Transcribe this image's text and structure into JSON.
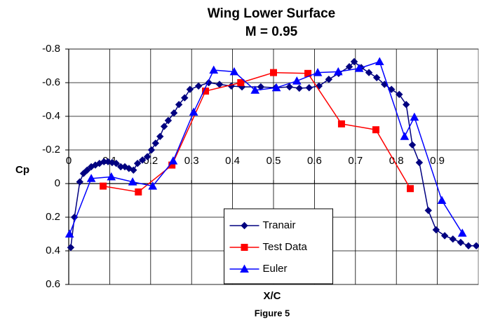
{
  "chart_data": {
    "type": "line",
    "title": "Wing Lower Surface",
    "subtitle": "M = 0.95",
    "xlabel": "X/C",
    "ylabel": "Cp",
    "caption": "Figure 5",
    "xlim": [
      0,
      1.0
    ],
    "xticks": [
      0,
      0.1,
      0.2,
      0.3,
      0.4,
      0.5,
      0.6,
      0.7,
      0.8,
      0.9
    ],
    "ylim": [
      -0.8,
      0.6
    ],
    "yticks": [
      -0.8,
      -0.6,
      -0.4,
      -0.2,
      0,
      0.2,
      0.4,
      0.6
    ],
    "y_inverted": true,
    "grid": true,
    "legend_position": "bottom-center",
    "series": [
      {
        "name": "Tranair",
        "color": "#000080",
        "marker": "diamond",
        "x": [
          0.005,
          0.014,
          0.027,
          0.036,
          0.045,
          0.055,
          0.065,
          0.075,
          0.086,
          0.096,
          0.106,
          0.116,
          0.127,
          0.137,
          0.147,
          0.158,
          0.168,
          0.18,
          0.192,
          0.202,
          0.212,
          0.223,
          0.233,
          0.243,
          0.257,
          0.269,
          0.283,
          0.296,
          0.317,
          0.342,
          0.368,
          0.397,
          0.423,
          0.469,
          0.505,
          0.539,
          0.563,
          0.587,
          0.611,
          0.635,
          0.659,
          0.685,
          0.697,
          0.714,
          0.733,
          0.752,
          0.771,
          0.788,
          0.807,
          0.824,
          0.839,
          0.856,
          0.878,
          0.897,
          0.918,
          0.938,
          0.957,
          0.976,
          0.995
        ],
        "values": [
          0.38,
          0.2,
          -0.01,
          -0.06,
          -0.08,
          -0.1,
          -0.11,
          -0.12,
          -0.13,
          -0.13,
          -0.125,
          -0.12,
          -0.1,
          -0.1,
          -0.09,
          -0.08,
          -0.12,
          -0.14,
          -0.16,
          -0.2,
          -0.24,
          -0.28,
          -0.34,
          -0.375,
          -0.42,
          -0.47,
          -0.51,
          -0.56,
          -0.58,
          -0.6,
          -0.59,
          -0.58,
          -0.575,
          -0.575,
          -0.57,
          -0.575,
          -0.567,
          -0.57,
          -0.58,
          -0.62,
          -0.655,
          -0.695,
          -0.725,
          -0.69,
          -0.66,
          -0.63,
          -0.59,
          -0.56,
          -0.53,
          -0.47,
          -0.23,
          -0.125,
          0.16,
          0.275,
          0.31,
          0.33,
          0.35,
          0.37,
          0.37
        ]
      },
      {
        "name": "Test Data",
        "color": "#ff0000",
        "marker": "square",
        "x": [
          0.084,
          0.17,
          0.252,
          0.334,
          0.42,
          0.5,
          0.584,
          0.666,
          0.75,
          0.834
        ],
        "values": [
          0.015,
          0.05,
          -0.11,
          -0.55,
          -0.6,
          -0.66,
          -0.655,
          -0.355,
          -0.32,
          0.03
        ]
      },
      {
        "name": "Euler",
        "color": "#0000ff",
        "marker": "triangle",
        "x": [
          0.002,
          0.055,
          0.104,
          0.156,
          0.205,
          0.255,
          0.305,
          0.354,
          0.404,
          0.455,
          0.507,
          0.557,
          0.608,
          0.658,
          0.709,
          0.759,
          0.82,
          0.844,
          0.911,
          0.961
        ],
        "values": [
          0.3,
          -0.03,
          -0.04,
          -0.01,
          0.015,
          -0.135,
          -0.425,
          -0.675,
          -0.665,
          -0.555,
          -0.57,
          -0.61,
          -0.66,
          -0.665,
          -0.685,
          -0.725,
          -0.28,
          -0.395,
          0.1,
          0.295
        ]
      }
    ]
  }
}
